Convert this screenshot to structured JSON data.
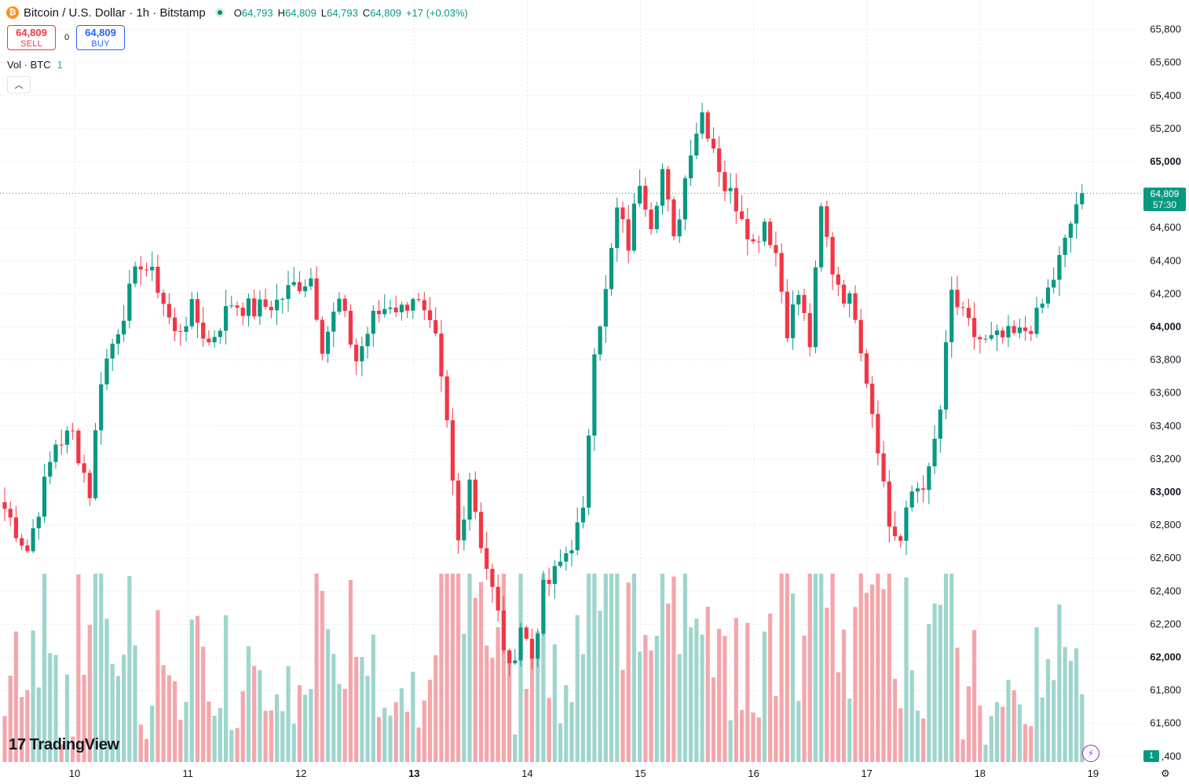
{
  "header": {
    "coin_symbol": "₿",
    "title": "Bitcoin / U.S. Dollar · 1h · Bitstamp",
    "open_label": "O",
    "open": "64,793",
    "high_label": "H",
    "high": "64,809",
    "low_label": "L",
    "low": "64,793",
    "close_label": "C",
    "close": "64,809",
    "change": "+17 (+0.03%)"
  },
  "trade": {
    "sell_price": "64,809",
    "sell_label": "SELL",
    "spread": "0",
    "buy_price": "64,809",
    "buy_label": "BUY"
  },
  "volume_legend": {
    "label": "Vol · BTC",
    "value": "1"
  },
  "collapse_icon": "chevron-up-icon",
  "last_price": {
    "price": "64,809",
    "countdown": "57:30"
  },
  "volume_badge": "1",
  "branding": {
    "logo_mark": "17",
    "name": "TradingView"
  },
  "colors": {
    "up": "#089981",
    "down": "#f23645",
    "vol_up": "#9ed5cd",
    "vol_down": "#f3a6ab",
    "grid": "#e6e8ee"
  },
  "chart_data": {
    "type": "candlestick",
    "symbol": "Bitcoin / U.S. Dollar",
    "interval": "1h",
    "exchange": "Bitstamp",
    "y_ticks": [
      {
        "v": 65800,
        "t": "65,800"
      },
      {
        "v": 65600,
        "t": "65,600"
      },
      {
        "v": 65400,
        "t": "65,400"
      },
      {
        "v": 65200,
        "t": "65,200"
      },
      {
        "v": 65000,
        "t": "65,000",
        "bold": true
      },
      {
        "v": 64600,
        "t": "64,600"
      },
      {
        "v": 64400,
        "t": "64,400"
      },
      {
        "v": 64200,
        "t": "64,200"
      },
      {
        "v": 64000,
        "t": "64,000",
        "bold": true
      },
      {
        "v": 63800,
        "t": "63,800"
      },
      {
        "v": 63600,
        "t": "63,600"
      },
      {
        "v": 63400,
        "t": "63,400"
      },
      {
        "v": 63200,
        "t": "63,200"
      },
      {
        "v": 63000,
        "t": "63,000",
        "bold": true
      },
      {
        "v": 62800,
        "t": "62,800"
      },
      {
        "v": 62600,
        "t": "62,600"
      },
      {
        "v": 62400,
        "t": "62,400"
      },
      {
        "v": 62200,
        "t": "62,200"
      },
      {
        "v": 62000,
        "t": "62,000",
        "bold": true
      },
      {
        "v": 61800,
        "t": "61,800"
      },
      {
        "v": 61600,
        "t": "61,600"
      },
      {
        "v": 61400,
        "t": ",400"
      }
    ],
    "x_ticks": [
      {
        "t": "10"
      },
      {
        "t": "11"
      },
      {
        "t": "12"
      },
      {
        "t": "13",
        "bold": true
      },
      {
        "t": "14"
      },
      {
        "t": "15"
      },
      {
        "t": "16"
      },
      {
        "t": "17"
      },
      {
        "t": "18"
      },
      {
        "t": "19"
      }
    ],
    "last_close": 64809,
    "anchors": [
      [
        0,
        62900
      ],
      [
        4,
        62650
      ],
      [
        9,
        63300
      ],
      [
        12,
        63350
      ],
      [
        15,
        63000
      ],
      [
        17,
        63700
      ],
      [
        20,
        64000
      ],
      [
        24,
        64400
      ],
      [
        27,
        64250
      ],
      [
        30,
        63950
      ],
      [
        33,
        64100
      ],
      [
        36,
        63900
      ],
      [
        40,
        64150
      ],
      [
        44,
        64100
      ],
      [
        48,
        64150
      ],
      [
        51,
        64250
      ],
      [
        54,
        64300
      ],
      [
        56,
        63900
      ],
      [
        59,
        64150
      ],
      [
        62,
        63800
      ],
      [
        65,
        64050
      ],
      [
        68,
        64150
      ],
      [
        70,
        64100
      ],
      [
        72,
        64200
      ],
      [
        74,
        64050
      ],
      [
        76,
        63900
      ],
      [
        78,
        63400
      ],
      [
        80,
        62700
      ],
      [
        82,
        63100
      ],
      [
        84,
        62700
      ],
      [
        87,
        62250
      ],
      [
        89,
        61900
      ],
      [
        91,
        62200
      ],
      [
        93,
        62000
      ],
      [
        95,
        62400
      ],
      [
        97,
        62500
      ],
      [
        100,
        62700
      ],
      [
        102,
        62850
      ],
      [
        104,
        63900
      ],
      [
        106,
        64200
      ],
      [
        108,
        64700
      ],
      [
        110,
        64500
      ],
      [
        112,
        64900
      ],
      [
        114,
        64650
      ],
      [
        116,
        64950
      ],
      [
        118,
        64500
      ],
      [
        121,
        65100
      ],
      [
        123,
        65300
      ],
      [
        125,
        65100
      ],
      [
        127,
        64850
      ],
      [
        130,
        64700
      ],
      [
        132,
        64500
      ],
      [
        134,
        64650
      ],
      [
        136,
        64450
      ],
      [
        138,
        64000
      ],
      [
        140,
        64200
      ],
      [
        142,
        63900
      ],
      [
        144,
        64700
      ],
      [
        146,
        64350
      ],
      [
        148,
        64200
      ],
      [
        150,
        64100
      ],
      [
        152,
        63700
      ],
      [
        154,
        63300
      ],
      [
        156,
        62800
      ],
      [
        158,
        62700
      ],
      [
        160,
        63000
      ],
      [
        163,
        63100
      ],
      [
        165,
        63500
      ],
      [
        167,
        64200
      ],
      [
        169,
        64050
      ],
      [
        171,
        63950
      ],
      [
        173,
        63900
      ],
      [
        176,
        63930
      ],
      [
        179,
        63950
      ],
      [
        182,
        64050
      ],
      [
        185,
        64300
      ],
      [
        187,
        64500
      ],
      [
        189,
        64750
      ],
      [
        191,
        64809
      ]
    ],
    "volume_scale_max": 1000
  }
}
